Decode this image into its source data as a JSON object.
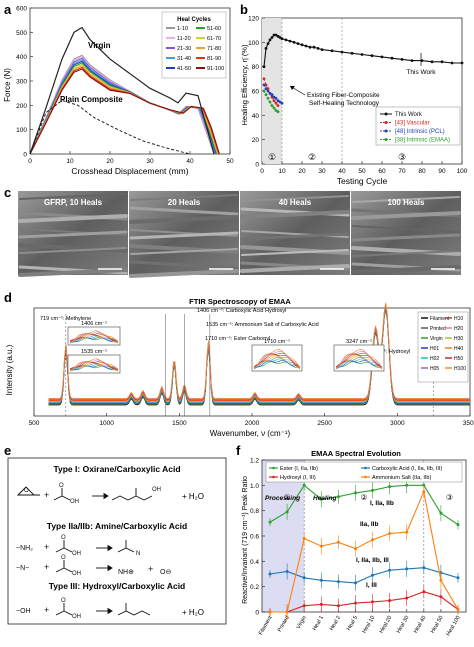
{
  "panels": {
    "a": {
      "letter": "a",
      "ylabel": "Force (N)",
      "xlabel": "Crosshead Displacement (mm)",
      "yticks": [
        "0",
        "100",
        "200",
        "300",
        "400",
        "500",
        "600"
      ],
      "xticks": [
        "0",
        "10",
        "20",
        "30",
        "40",
        "50"
      ],
      "legend_title": "Heal Cycles",
      "legend_items": [
        "1-10",
        "51-60",
        "11-20",
        "61-70",
        "21-30",
        "71-80",
        "31-40",
        "81-90",
        "41-50",
        "91-100"
      ],
      "label_virgin": "Virgin",
      "label_plain": "Plain Composite"
    },
    "b": {
      "letter": "b",
      "ylabel": "Healing Efficiency, η̄ (%)",
      "xlabel": "Testing Cycle",
      "yticks": [
        "0",
        "20",
        "40",
        "60",
        "80",
        "100",
        "120"
      ],
      "xticks": [
        "0",
        "10",
        "20",
        "30",
        "40",
        "50",
        "60",
        "70",
        "80",
        "90",
        "100"
      ],
      "note_existing": "Existing Fiber-Composite",
      "note_existing2": "Self-Healing Technology",
      "note_this": "This Work",
      "legend_items": [
        "This Work",
        "[43] Vascular",
        "[48] Intrinsic (PCL)",
        "[38] Intrinsic (EMAA)"
      ],
      "circles": [
        "①",
        "②",
        "③"
      ]
    },
    "c": {
      "letter": "c",
      "captions": [
        "GFRP, 10 Heals",
        "20 Heals",
        "40 Heals",
        "100 Heals"
      ]
    },
    "d": {
      "letter": "d",
      "title": "FTIR Spectroscopy of EMAA",
      "ylabel": "Intensity (a.u.)",
      "xlabel": "Wavenumber, ν (cm⁻¹)",
      "xticks": [
        "500",
        "1000",
        "1500",
        "2000",
        "2500",
        "3000",
        "3500"
      ],
      "annotations": [
        "719 cm⁻¹: Methylene",
        "1406 cm⁻¹: Carboxylic Acid Hydroxyl",
        "1535 cm⁻¹: Ammonium Salt of Carboxylic Acid",
        "1710 cm⁻¹: Ester Carbonyl",
        "3247 cm⁻¹: Hydroxyl"
      ],
      "inset_labels": [
        "1406 cm⁻¹",
        "1535 cm⁻¹",
        "1710 cm⁻¹",
        "3247 cm⁻¹"
      ],
      "legend_items": [
        "Filament",
        "H10",
        "Printed",
        "H20",
        "Virgin",
        "H30",
        "H01",
        "H40",
        "H02",
        "H50",
        "H05",
        "H100"
      ]
    },
    "e": {
      "letter": "e",
      "type1": "Type I: Oxirane/Carboxylic Acid",
      "type2": "Type IIa/IIb: Amine/Carboxylic Acid",
      "type3": "Type III: Hydroxyl/Carboxylic Acid",
      "h2o": "+ H₂O"
    },
    "f": {
      "letter": "f",
      "title": "EMAA Spectral Evolution",
      "ylabel": "Reactive/Invariant (719 cm⁻¹) Peak Ratio",
      "yticks": [
        "0",
        "0.2",
        "0.4",
        "0.6",
        "0.8",
        "1.0",
        "1.2"
      ],
      "xticks": [
        "Filament",
        "Printed",
        "Virgin",
        "Heal 1",
        "Heal 2",
        "Heal 5",
        "Heal 10",
        "Heal 20",
        "Heal 30",
        "Heal 40",
        "Heal 50",
        "Heal 100"
      ],
      "legend_items": [
        "Ester (I, IIa, IIb)",
        "Carboxylic Acid (I, IIa, IIb, III)",
        "Hydroxyl (I, III)",
        "Ammonium Salt (IIa, IIb)"
      ],
      "phase_processing": "Processing",
      "phase_healing": "Healing",
      "series_labels": [
        "I, IIa, IIb",
        "IIa, IIb",
        "I, IIa, IIb, III",
        "I, III"
      ],
      "circles": [
        "①",
        "②",
        "③"
      ]
    }
  },
  "chart_data": [
    {
      "panel": "b",
      "type": "line",
      "title": "",
      "xlabel": "Testing Cycle",
      "ylabel": "Healing Efficiency, η̄ (%)",
      "xlim": [
        0,
        100
      ],
      "ylim": [
        0,
        120
      ],
      "series": [
        {
          "name": "This Work",
          "color": "#111111",
          "x": [
            1,
            2,
            3,
            4,
            5,
            6,
            7,
            8,
            9,
            10,
            12,
            14,
            16,
            18,
            20,
            22,
            24,
            26,
            28,
            30,
            35,
            40,
            45,
            50,
            55,
            60,
            65,
            70,
            75,
            80,
            85,
            90,
            95,
            100
          ],
          "y": [
            80,
            95,
            99,
            102,
            104,
            106,
            106,
            105,
            104,
            103,
            102,
            101,
            100,
            99,
            98,
            97,
            96,
            96,
            95,
            94,
            93,
            92,
            91,
            90,
            89,
            88,
            87,
            86,
            85,
            85,
            84,
            84,
            83,
            83
          ]
        },
        {
          "name": "[43] Vascular",
          "color": "#d62728",
          "x": [
            1,
            2,
            3,
            4,
            5,
            6,
            7,
            8
          ],
          "y": [
            70,
            65,
            62,
            58,
            55,
            52,
            50,
            48
          ]
        },
        {
          "name": "[48] Intrinsic (PCL)",
          "color": "#1f3fbf",
          "x": [
            1,
            2,
            3,
            4,
            5,
            6,
            7,
            8,
            9,
            10
          ],
          "y": [
            65,
            62,
            60,
            58,
            57,
            55,
            54,
            52,
            51,
            50
          ]
        },
        {
          "name": "[38] Intrinsic (EMAA)",
          "color": "#2ca02c",
          "x": [
            1,
            2,
            3,
            4,
            5,
            6,
            7,
            8
          ],
          "y": [
            60,
            57,
            54,
            51,
            48,
            46,
            44,
            43
          ]
        }
      ]
    },
    {
      "panel": "f",
      "type": "line",
      "title": "EMAA Spectral Evolution",
      "ylabel": "Reactive/Invariant (719 cm⁻¹) Peak Ratio",
      "ylim": [
        0,
        1.2
      ],
      "categories": [
        "Filament",
        "Printed",
        "Virgin",
        "Heal 1",
        "Heal 2",
        "Heal 5",
        "Heal 10",
        "Heal 20",
        "Heal 30",
        "Heal 40",
        "Heal 50",
        "Heal 100"
      ],
      "series": [
        {
          "name": "Ester (I, IIa, IIb)",
          "color": "#2ca02c",
          "values": [
            0.71,
            0.79,
            1.0,
            0.89,
            0.91,
            0.94,
            0.96,
            0.99,
            1.0,
            1.0,
            0.78,
            0.69
          ]
        },
        {
          "name": "Carboxylic Acid (I, IIa, IIb, III)",
          "color": "#1f77b4",
          "values": [
            0.3,
            0.32,
            0.27,
            0.25,
            0.24,
            0.23,
            0.29,
            0.33,
            0.34,
            0.35,
            0.31,
            0.27
          ]
        },
        {
          "name": "Hydroxyl (I, III)",
          "color": "#d62728",
          "values": [
            0.0,
            0.0,
            0.05,
            0.06,
            0.05,
            0.07,
            0.08,
            0.09,
            0.11,
            0.16,
            0.12,
            0.02
          ]
        },
        {
          "name": "Ammonium Salt (IIa, IIb)",
          "color": "#ff7f0e",
          "values": [
            0.0,
            0.0,
            0.58,
            0.52,
            0.55,
            0.5,
            0.57,
            0.62,
            0.63,
            0.95,
            0.25,
            0.02
          ]
        }
      ]
    },
    {
      "panel": "a",
      "type": "line",
      "xlabel": "Crosshead Displacement (mm)",
      "ylabel": "Force (N)",
      "xlim": [
        0,
        50
      ],
      "ylim": [
        0,
        600
      ],
      "series": [
        {
          "name": "Virgin",
          "color": "#222222",
          "x": [
            0,
            4,
            8,
            11,
            13,
            15,
            20,
            25,
            30,
            35,
            37,
            39,
            42,
            44,
            46
          ],
          "y": [
            0,
            190,
            390,
            500,
            520,
            470,
            390,
            330,
            270,
            230,
            210,
            250,
            240,
            120,
            0
          ]
        },
        {
          "name": "Plain Composite",
          "color": "#222222",
          "x": [
            0,
            4,
            8,
            12,
            16,
            22,
            28,
            34,
            40
          ],
          "y": [
            0,
            170,
            220,
            200,
            150,
            100,
            55,
            25,
            0
          ]
        }
      ]
    }
  ]
}
